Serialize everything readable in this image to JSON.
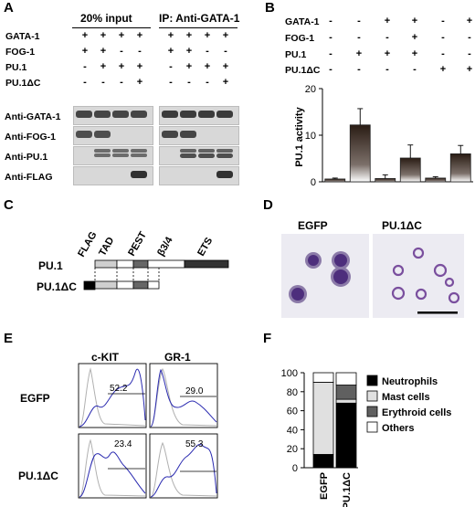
{
  "panelA": {
    "letter": "A",
    "input_header": "20% input",
    "ip_header": "IP: Anti-GATA-1",
    "row_labels": [
      "GATA-1",
      "FOG-1",
      "PU.1",
      "PU.1ΔC"
    ],
    "input_signs": [
      [
        "+",
        "+",
        "+",
        "+"
      ],
      [
        "+",
        "+",
        "-",
        "-"
      ],
      [
        "-",
        "+",
        "+",
        "+"
      ],
      [
        "-",
        "-",
        "-",
        "+"
      ]
    ],
    "ip_signs": [
      [
        "+",
        "+",
        "+",
        "+"
      ],
      [
        "+",
        "+",
        "-",
        "-"
      ],
      [
        "-",
        "+",
        "+",
        "+"
      ],
      [
        "-",
        "-",
        "-",
        "+"
      ]
    ],
    "blot_labels": [
      "Anti-GATA-1",
      "Anti-FOG-1",
      "Anti-PU.1",
      "Anti-FLAG"
    ]
  },
  "panelB": {
    "letter": "B",
    "row_labels": [
      "GATA-1",
      "FOG-1",
      "PU.1",
      "PU.1ΔC"
    ],
    "signs": [
      [
        "-",
        "-",
        "+",
        "+",
        "-",
        "+"
      ],
      [
        "-",
        "-",
        "-",
        "+",
        "-",
        "-"
      ],
      [
        "-",
        "+",
        "+",
        "+",
        "-",
        "-"
      ],
      [
        "-",
        "-",
        "-",
        "-",
        "+",
        "+"
      ]
    ]
  },
  "chart_data": {
    "type": "bar",
    "ylabel": "PU.1 activity",
    "ylim": [
      0,
      20
    ],
    "yticks": [
      "0",
      "10",
      "20"
    ],
    "values": [
      0.6,
      12.2,
      0.7,
      5.1,
      0.8,
      6.0
    ],
    "errors": [
      0.2,
      3.5,
      0.8,
      2.8,
      0.3,
      1.8
    ]
  },
  "panelC": {
    "letter": "C",
    "domain_labels": [
      "FLAG",
      "TAD",
      "PEST",
      "β3/4",
      "ETS"
    ],
    "row_labels": [
      "PU.1",
      "PU.1ΔC"
    ]
  },
  "panelD": {
    "letter": "D",
    "labels": [
      "EGFP",
      "PU.1ΔC"
    ]
  },
  "panelE": {
    "letter": "E",
    "col_labels": [
      "c-KIT",
      "GR-1"
    ],
    "row_labels": [
      "EGFP",
      "PU.1ΔC"
    ],
    "percentages": [
      "52.2",
      "29.0",
      "23.4",
      "55.3"
    ]
  },
  "panelF": {
    "letter": "F",
    "categories": [
      "EGFP",
      "PU.1ΔC"
    ],
    "yticks": [
      "0",
      "20",
      "40",
      "60",
      "80",
      "100"
    ],
    "series": [
      {
        "name": "Neutrophils",
        "color": "#000000",
        "values": [
          14,
          68
        ]
      },
      {
        "name": "Mast cells",
        "color": "#e0e0e0",
        "values": [
          76,
          4
        ]
      },
      {
        "name": "Erythroid cells",
        "color": "#606060",
        "values": [
          0,
          15
        ]
      },
      {
        "name": "Others",
        "color": "#ffffff",
        "values": [
          10,
          13
        ]
      }
    ]
  }
}
